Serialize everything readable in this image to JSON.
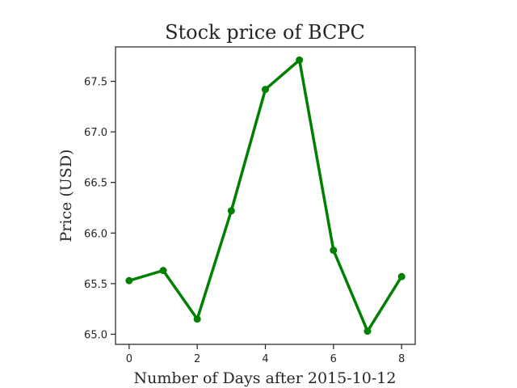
{
  "chart_data": {
    "type": "line",
    "title": "Stock price of BCPC",
    "xlabel": "Number of Days after 2015-10-12",
    "ylabel": "Price (USD)",
    "x": [
      0,
      1,
      2,
      3,
      4,
      5,
      6,
      7,
      8
    ],
    "series": [
      {
        "values": [
          65.53,
          65.63,
          65.15,
          66.22,
          67.42,
          67.71,
          65.83,
          65.03,
          65.57
        ],
        "color": "#008000"
      }
    ],
    "xlim": [
      -0.4,
      8.4
    ],
    "ylim": [
      64.9,
      67.84
    ],
    "xticks": [
      0,
      2,
      4,
      6,
      8
    ],
    "yticks": [
      65.0,
      65.5,
      66.0,
      66.5,
      67.0,
      67.5
    ],
    "ytick_labels": [
      "65.0",
      "65.5",
      "66.0",
      "66.5",
      "67.0",
      "67.5"
    ],
    "grid": false,
    "markers": true
  }
}
